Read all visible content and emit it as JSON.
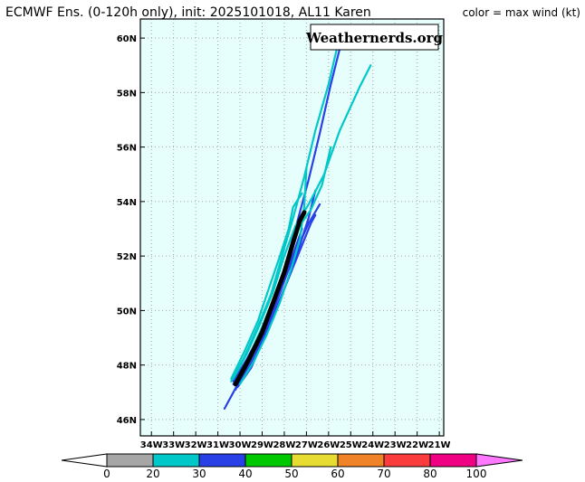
{
  "header": {
    "title": "ECMWF Ens. (0-120h only), init: 2025101018, AL11 Karen",
    "legend_note": "color = max wind (kt)"
  },
  "watermark": "Weathernerds.org",
  "map": {
    "lon_ticks": [
      "34W",
      "33W",
      "32W",
      "31W",
      "30W",
      "29W",
      "28W",
      "27W",
      "26W",
      "25W",
      "24W",
      "23W",
      "22W",
      "21W"
    ],
    "lat_ticks": [
      "46N",
      "48N",
      "50N",
      "52N",
      "54N",
      "56N",
      "58N",
      "60N"
    ],
    "lon_range": [
      -34.5,
      -20.8
    ],
    "lat_range": [
      45.4,
      60.7
    ],
    "ocean_color": "#e6fffd",
    "grid_color": "#a6a6a6"
  },
  "colorbar": {
    "labels": [
      "0",
      "20",
      "30",
      "40",
      "50",
      "60",
      "70",
      "80",
      "100"
    ],
    "bins": [
      {
        "color": "#a6a6a6"
      },
      {
        "color": "#00c8c8"
      },
      {
        "color": "#2840e6"
      },
      {
        "color": "#00c800"
      },
      {
        "color": "#e6dc32"
      },
      {
        "color": "#f08228"
      },
      {
        "color": "#fa3c3c"
      },
      {
        "color": "#f00082"
      }
    ],
    "under_color": "#ffffff",
    "over_color": "#ff78ff"
  },
  "tracks": [
    {
      "color": "#2840e6",
      "points": [
        [
          -30.3,
          47.3
        ],
        [
          -29.7,
          48.0
        ],
        [
          -29.0,
          49.0
        ],
        [
          -28.4,
          50.2
        ],
        [
          -27.9,
          51.3
        ],
        [
          -27.4,
          52.3
        ],
        [
          -26.9,
          53.2
        ],
        [
          -26.4,
          53.9
        ]
      ]
    },
    {
      "color": "#2840e6",
      "points": [
        [
          -30.2,
          47.1
        ],
        [
          -29.6,
          47.9
        ],
        [
          -29.0,
          48.9
        ],
        [
          -28.4,
          50.0
        ],
        [
          -27.8,
          51.2
        ],
        [
          -27.3,
          52.2
        ],
        [
          -26.8,
          53.2
        ],
        [
          -26.6,
          53.5
        ]
      ]
    },
    {
      "color": "#2840e6",
      "points": [
        [
          -30.1,
          47.2
        ],
        [
          -29.5,
          47.9
        ],
        [
          -28.9,
          49.0
        ],
        [
          -28.3,
          50.2
        ],
        [
          -27.7,
          51.4
        ],
        [
          -27.3,
          52.4
        ],
        [
          -26.9,
          53.4
        ],
        [
          -26.6,
          54.4
        ]
      ]
    },
    {
      "color": "#2840e6",
      "points": [
        [
          -30.3,
          47.4
        ],
        [
          -29.7,
          48.2
        ],
        [
          -29.0,
          49.3
        ],
        [
          -28.4,
          50.5
        ],
        [
          -27.9,
          51.8
        ],
        [
          -27.4,
          53.3
        ],
        [
          -26.9,
          54.8
        ],
        [
          -26.4,
          56.5
        ],
        [
          -25.9,
          58.3
        ],
        [
          -25.5,
          59.6
        ]
      ]
    },
    {
      "color": "#2840e6",
      "points": [
        [
          -30.7,
          46.4
        ],
        [
          -30.3,
          47.0
        ],
        [
          -29.7,
          47.9
        ],
        [
          -29.1,
          48.9
        ],
        [
          -28.5,
          50.1
        ],
        [
          -28.0,
          51.2
        ],
        [
          -27.5,
          52.3
        ],
        [
          -27.2,
          53.0
        ]
      ]
    },
    {
      "color": "#00c8c8",
      "points": [
        [
          -30.4,
          47.4
        ],
        [
          -29.8,
          48.3
        ],
        [
          -29.2,
          49.4
        ],
        [
          -28.6,
          50.6
        ],
        [
          -28.1,
          52.0
        ],
        [
          -27.6,
          53.4
        ],
        [
          -27.1,
          54.9
        ],
        [
          -26.6,
          56.6
        ],
        [
          -26.0,
          58.3
        ],
        [
          -25.6,
          59.7
        ],
        [
          -25.4,
          60.2
        ]
      ]
    },
    {
      "color": "#00c8c8",
      "points": [
        [
          -30.3,
          47.5
        ],
        [
          -29.7,
          48.4
        ],
        [
          -29.1,
          49.5
        ],
        [
          -28.5,
          50.7
        ],
        [
          -28.0,
          52.0
        ],
        [
          -27.5,
          53.1
        ],
        [
          -26.9,
          53.9
        ],
        [
          -26.2,
          55.0
        ],
        [
          -25.5,
          56.6
        ],
        [
          -24.6,
          58.2
        ],
        [
          -24.1,
          59.0
        ]
      ]
    },
    {
      "color": "#00c8c8",
      "points": [
        [
          -30.2,
          47.4
        ],
        [
          -29.6,
          48.3
        ],
        [
          -29.0,
          49.4
        ],
        [
          -28.4,
          50.6
        ],
        [
          -27.9,
          51.8
        ],
        [
          -27.4,
          53.0
        ],
        [
          -26.8,
          53.7
        ],
        [
          -26.3,
          54.6
        ],
        [
          -25.9,
          56.0
        ]
      ]
    },
    {
      "color": "#00c8c8",
      "points": [
        [
          -30.0,
          47.3
        ],
        [
          -29.4,
          48.1
        ],
        [
          -28.8,
          49.1
        ],
        [
          -28.2,
          50.3
        ],
        [
          -27.7,
          51.5
        ],
        [
          -27.3,
          52.6
        ],
        [
          -27.1,
          53.8
        ],
        [
          -27.0,
          55.2
        ]
      ]
    },
    {
      "color": "#00c8c8",
      "points": [
        [
          -30.4,
          47.5
        ],
        [
          -29.8,
          48.5
        ],
        [
          -29.2,
          49.6
        ],
        [
          -28.7,
          50.8
        ],
        [
          -28.2,
          52.0
        ],
        [
          -27.8,
          53.0
        ],
        [
          -27.6,
          53.8
        ],
        [
          -27.2,
          54.3
        ]
      ]
    },
    {
      "color": "#000000",
      "points": [
        [
          -30.2,
          47.3
        ],
        [
          -29.6,
          48.2
        ],
        [
          -29.0,
          49.2
        ],
        [
          -28.5,
          50.3
        ],
        [
          -28.0,
          51.4
        ],
        [
          -27.6,
          52.5
        ],
        [
          -27.3,
          53.3
        ],
        [
          -27.1,
          53.6
        ]
      ]
    }
  ]
}
